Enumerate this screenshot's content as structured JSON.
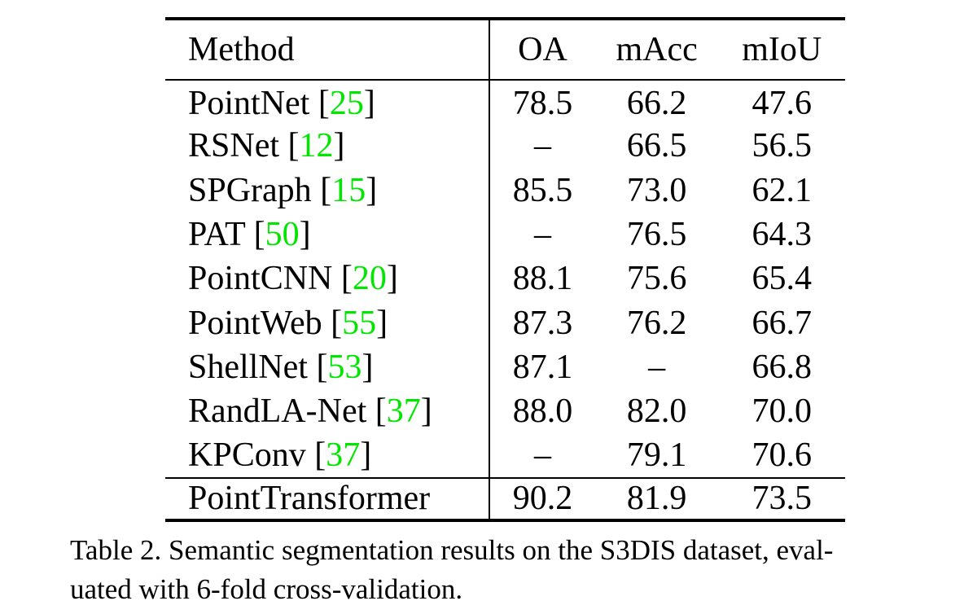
{
  "table": {
    "headers": [
      "Method",
      "OA",
      "mAcc",
      "mIoU"
    ],
    "rows": [
      {
        "method": "PointNet",
        "ref": "25",
        "oa": "78.5",
        "macc": "66.2",
        "miou": "47.6"
      },
      {
        "method": "RSNet",
        "ref": "12",
        "oa": "–",
        "macc": "66.5",
        "miou": "56.5"
      },
      {
        "method": "SPGraph",
        "ref": "15",
        "oa": "85.5",
        "macc": "73.0",
        "miou": "62.1"
      },
      {
        "method": "PAT",
        "ref": "50",
        "oa": "–",
        "macc": "76.5",
        "miou": "64.3"
      },
      {
        "method": "PointCNN",
        "ref": "20",
        "oa": "88.1",
        "macc": "75.6",
        "miou": "65.4"
      },
      {
        "method": "PointWeb",
        "ref": "55",
        "oa": "87.3",
        "macc": "76.2",
        "miou": "66.7"
      },
      {
        "method": "ShellNet",
        "ref": "53",
        "oa": "87.1",
        "macc": "–",
        "miou": "66.8"
      },
      {
        "method": "RandLA-Net",
        "ref": "37",
        "oa": "88.0",
        "macc": "82.0",
        "miou": "70.0"
      },
      {
        "method": "KPConv",
        "ref": "37",
        "oa": "–",
        "macc": "79.1",
        "miou": "70.6"
      }
    ],
    "ours": {
      "method": "PointTransformer",
      "oa": "90.2",
      "macc": "81.9",
      "miou": "73.5"
    },
    "ref_color": "#00e600"
  },
  "caption": "Table 2. Semantic segmentation results on the S3DIS dataset, eval-uated with 6-fold cross-validation."
}
